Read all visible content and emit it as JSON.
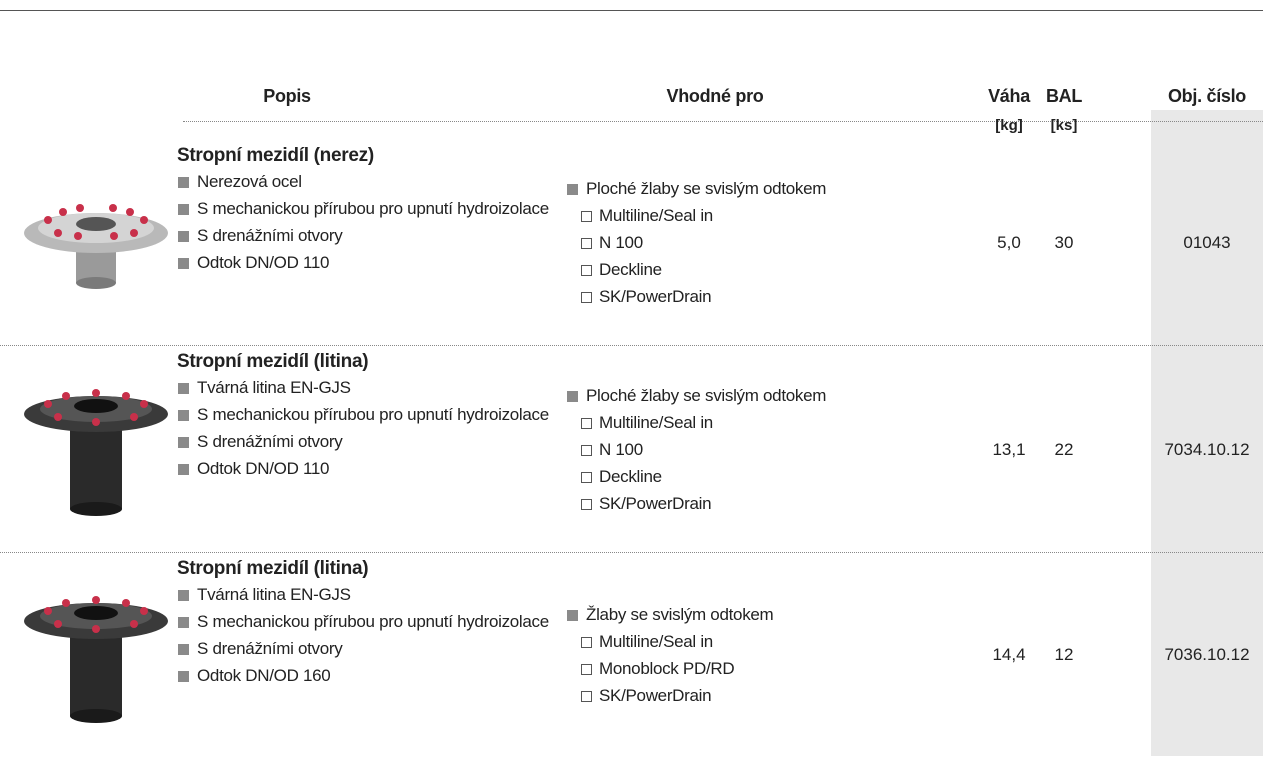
{
  "header": {
    "columns": [
      "Popis",
      "Vhodné pro",
      "Váha",
      "BAL",
      "Obj. číslo"
    ],
    "units": [
      "[kg]",
      "[ks]"
    ]
  },
  "table": {
    "rows": [
      {
        "title": "Stropní mezidíl (nerez)",
        "features": [
          "Nerezová ocel",
          "S mechanickou přírubou pro upnutí hydroizolace",
          "S drenážními otvory",
          "Odtok DN/OD 110"
        ],
        "suitable": {
          "heading": "Ploché žlaby se svislým odtokem",
          "items": [
            "Multiline/Seal in",
            "N 100",
            "Deckline",
            "SK/PowerDrain"
          ]
        },
        "weight": "5,0",
        "bal": 30,
        "code": "01043"
      },
      {
        "title": "Stropní mezidíl (litina)",
        "features": [
          "Tvárná litina EN-GJS",
          "S mechanickou přírubou pro upnutí hydroizolace",
          "S drenážními otvory",
          "Odtok DN/OD 110"
        ],
        "suitable": {
          "heading": "Ploché žlaby se svislým odtokem",
          "items": [
            "Multiline/Seal in",
            "N 100",
            "Deckline",
            "SK/PowerDrain"
          ]
        },
        "weight": "13,1",
        "bal": 22,
        "code": "7034.10.12"
      },
      {
        "title": "Stropní mezidíl (litina)",
        "features": [
          "Tvárná litina EN-GJS",
          "S mechanickou přírubou pro upnutí hydroizolace",
          "S drenážními otvory",
          "Odtok DN/OD 160"
        ],
        "suitable": {
          "heading": "Žlaby se svislým odtokem",
          "items": [
            "Multiline/Seal in",
            "Monoblock PD/RD",
            "SK/PowerDrain"
          ]
        },
        "weight": "14,4",
        "bal": 12,
        "code": "7036.10.12"
      }
    ]
  }
}
